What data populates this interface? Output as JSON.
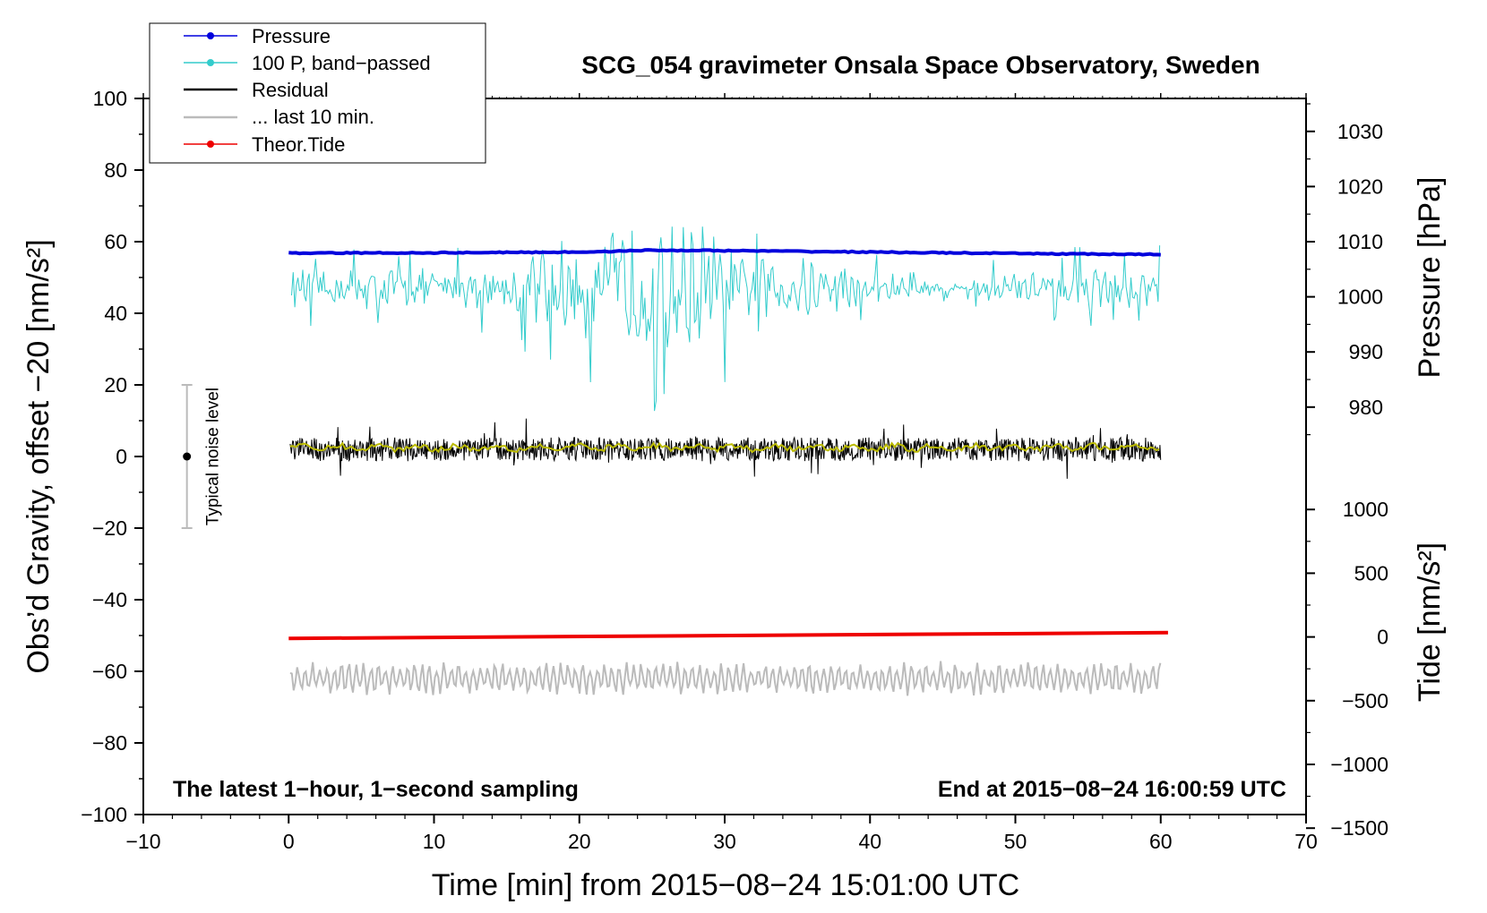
{
  "chart_data": {
    "type": "line",
    "title": "SCG_054 gravimeter Onsala Space Observatory, Sweden",
    "annotations": {
      "left": "The latest 1−hour, 1−second sampling",
      "right": "End at 2015−08−24 16:00:59 UTC"
    },
    "xlabel": "Time [min] from 2015−08−24 15:01:00 UTC",
    "ylabel": "Obs’d Gravity, offset −20 [nm/s²]",
    "xlim": [
      -10,
      70
    ],
    "ylim": [
      -100,
      100
    ],
    "xticks": [
      "−10",
      "0",
      "10",
      "20",
      "30",
      "40",
      "50",
      "60",
      "70"
    ],
    "yticks": [
      "−100",
      "−80",
      "−60",
      "−40",
      "−20",
      "0",
      "20",
      "40",
      "60",
      "80",
      "100"
    ],
    "pressure_axis": {
      "label": "Pressure [hPa]",
      "ticks": [
        "980",
        "990",
        "1000",
        "1010",
        "1020",
        "1030"
      ]
    },
    "tide_axis": {
      "label": "Tide [nm/s²]",
      "ticks": [
        "−1500",
        "−1000",
        "−500",
        "0",
        "500",
        "1000"
      ]
    },
    "noise_bar": {
      "label": "Typical noise level",
      "x": -7,
      "center": 0,
      "low": -20,
      "high": 20
    },
    "legend": [
      "Pressure",
      "100 P, band−passed",
      "Residual",
      "... last 10 min.",
      "Theor.Tide"
    ],
    "colors": {
      "pressure": "#0000dd",
      "bandpassed": "#33cccc",
      "residual": "#000000",
      "residual_smooth": "#bbbb00",
      "last10": "#bbbbbb",
      "tide": "#ee0000",
      "noise": "#bbbbbb"
    },
    "series": [
      {
        "name": "Pressure",
        "x_range": [
          0,
          60
        ],
        "points": [
          [
            0,
            56.8
          ],
          [
            10,
            56.9
          ],
          [
            20,
            57.1
          ],
          [
            25,
            57.6
          ],
          [
            30,
            57.5
          ],
          [
            40,
            57.1
          ],
          [
            50,
            56.7
          ],
          [
            60,
            56.4
          ]
        ]
      },
      {
        "name": "100 P, band−passed",
        "x_range": [
          0,
          60
        ],
        "mean": 47,
        "amplitude_envelope": [
          [
            0,
            8
          ],
          [
            12,
            8
          ],
          [
            15,
            10
          ],
          [
            20,
            22
          ],
          [
            25,
            23
          ],
          [
            27,
            25
          ],
          [
            29,
            26
          ],
          [
            31,
            12
          ],
          [
            36,
            12
          ],
          [
            38,
            10
          ],
          [
            43,
            4
          ],
          [
            46,
            2
          ],
          [
            49,
            6
          ],
          [
            55,
            8
          ],
          [
            60,
            9
          ]
        ]
      },
      {
        "name": "Residual",
        "x_range": [
          0,
          60
        ],
        "mean": 2,
        "amplitude": 6
      },
      {
        "name": "Residual smoothed",
        "x_range": [
          0,
          60
        ],
        "mean": 2.5,
        "amplitude": 1.5
      },
      {
        "name": "... last 10 min.",
        "x_range": [
          0,
          60
        ],
        "mean": -62,
        "amplitude": 5
      },
      {
        "name": "Theor.Tide",
        "x_range": [
          0,
          60.5
        ],
        "points": [
          [
            0,
            -50.8
          ],
          [
            60.5,
            -49.2
          ]
        ]
      }
    ]
  }
}
